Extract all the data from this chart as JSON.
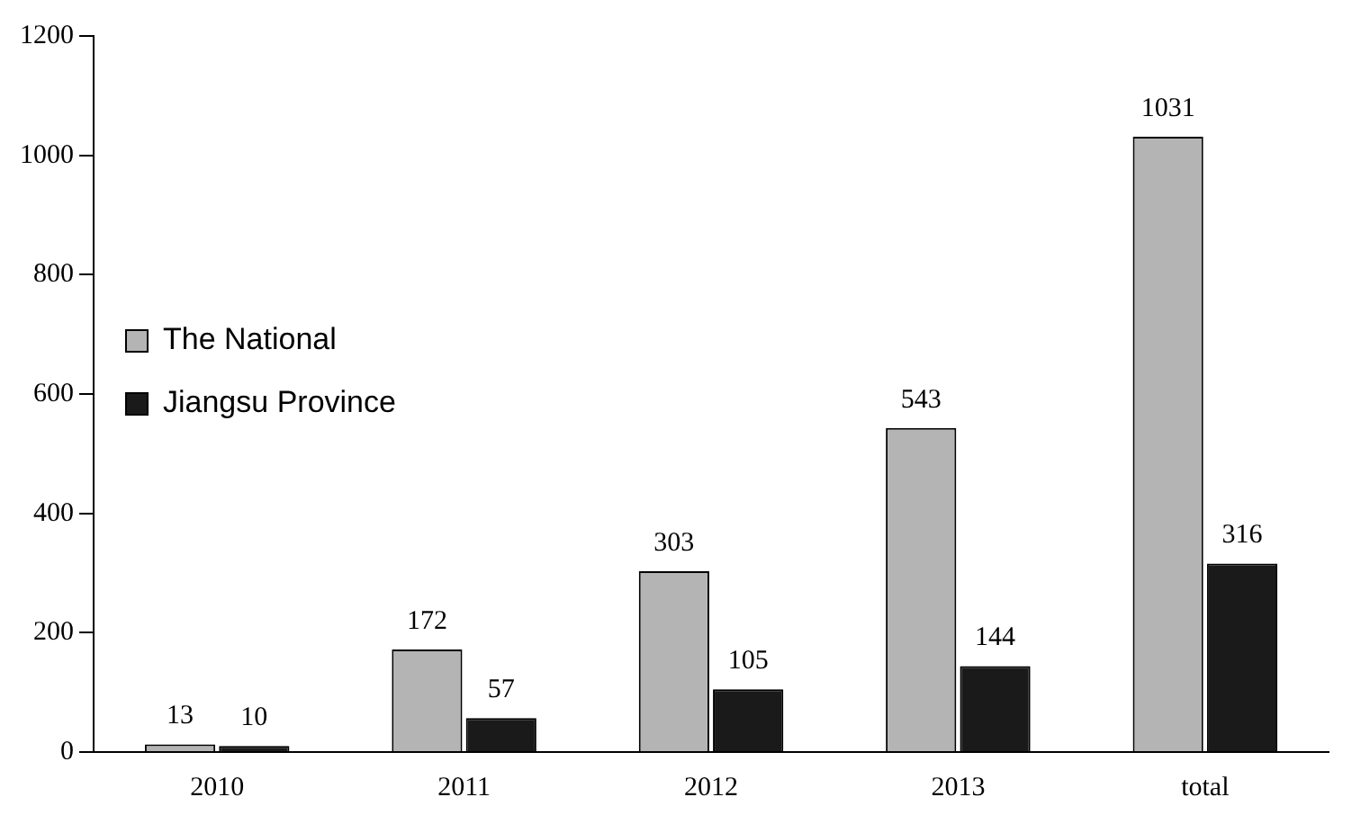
{
  "chart_data": {
    "type": "bar",
    "categories": [
      "2010",
      "2011",
      "2012",
      "2013",
      "total"
    ],
    "series": [
      {
        "name": "The National",
        "color": "#b4b4b4",
        "values": [
          13,
          172,
          303,
          543,
          1031
        ]
      },
      {
        "name": "Jiangsu Province",
        "color": "#1a1a1a",
        "values": [
          10,
          57,
          105,
          144,
          316
        ]
      }
    ],
    "ylim": [
      0,
      1200
    ],
    "yticks": [
      0,
      200,
      400,
      600,
      800,
      1000,
      1200
    ],
    "grid": false,
    "legend": "top",
    "data_labels": true
  }
}
